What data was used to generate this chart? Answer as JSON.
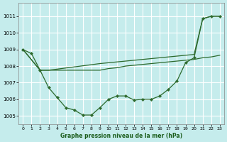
{
  "title": "Graphe pression niveau de la mer (hPa)",
  "bg_color": "#c5ecec",
  "grid_color": "#ffffff",
  "line_color": "#2d6a2d",
  "yticks": [
    1005,
    1006,
    1007,
    1008,
    1009,
    1010,
    1011
  ],
  "xticks": [
    0,
    1,
    2,
    3,
    4,
    5,
    6,
    7,
    8,
    9,
    10,
    11,
    12,
    13,
    14,
    15,
    16,
    17,
    18,
    19,
    20,
    21,
    22,
    23
  ],
  "xlim": [
    -0.5,
    23.5
  ],
  "ylim": [
    1004.5,
    1011.8
  ],
  "s1_x": [
    0,
    1,
    2,
    3,
    4,
    5,
    6,
    7,
    8,
    9,
    10,
    11,
    12,
    13,
    14,
    15,
    16,
    17,
    18,
    19,
    20,
    21,
    22,
    23
  ],
  "s1_y": [
    1009.0,
    1008.75,
    1007.75,
    1006.7,
    1006.1,
    1005.5,
    1005.35,
    1005.05,
    1005.05,
    1005.5,
    1006.0,
    1006.2,
    1006.2,
    1005.95,
    1006.0,
    1006.0,
    1006.2,
    1006.6,
    1007.1,
    1008.2,
    1008.5,
    1010.85,
    1011.0,
    1011.0
  ],
  "s2_x": [
    0,
    2,
    3,
    9,
    10,
    11,
    12,
    13,
    14,
    15,
    16,
    17,
    18,
    19,
    20,
    21,
    22,
    23
  ],
  "s2_y": [
    1009.0,
    1007.75,
    1007.75,
    1007.75,
    1007.85,
    1007.9,
    1008.0,
    1008.05,
    1008.1,
    1008.15,
    1008.2,
    1008.25,
    1008.3,
    1008.35,
    1008.4,
    1008.5,
    1008.55,
    1008.65
  ],
  "s3_x": [
    0,
    2,
    3,
    9,
    10,
    11,
    12,
    13,
    14,
    15,
    16,
    17,
    18,
    19,
    20,
    21,
    22,
    23
  ],
  "s3_y": [
    1009.0,
    1007.75,
    1007.75,
    1008.15,
    1008.2,
    1008.25,
    1008.3,
    1008.35,
    1008.4,
    1008.45,
    1008.5,
    1008.55,
    1008.6,
    1008.65,
    1008.7,
    1010.85,
    1011.0,
    1011.0
  ]
}
